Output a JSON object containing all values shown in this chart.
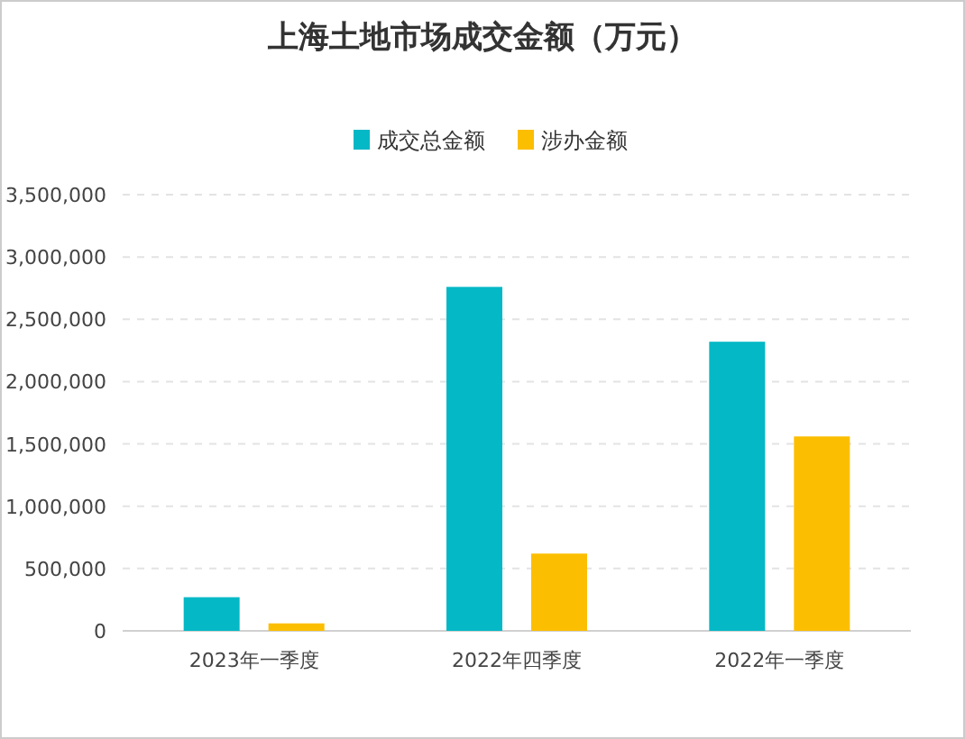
{
  "chart_data": {
    "type": "bar",
    "title": "上海土地市场成交金额（万元）",
    "categories": [
      "2023年一季度",
      "2022年四季度",
      "2022年一季度"
    ],
    "series": [
      {
        "name": "成交总金额",
        "color": "#05b8c6",
        "values": [
          270000,
          2760000,
          2320000
        ]
      },
      {
        "name": "涉办金额",
        "color": "#fcbe00",
        "values": [
          60000,
          620000,
          1560000
        ]
      }
    ],
    "ylim": [
      0,
      3500000
    ],
    "yticks": [
      0,
      {
        "value": 500000,
        "label": "500,000"
      },
      {
        "value": 1000000,
        "label": "1,000,000"
      },
      {
        "value": 1500000,
        "label": "1,500,000"
      },
      {
        "value": 2000000,
        "label": "2,000,000"
      },
      {
        "value": 2500000,
        "label": "2,500,000"
      },
      {
        "value": 3000000,
        "label": "3,000,000"
      },
      {
        "value": 3500000,
        "label": "3,500,000"
      }
    ],
    "grid": "y",
    "legend": "top"
  }
}
